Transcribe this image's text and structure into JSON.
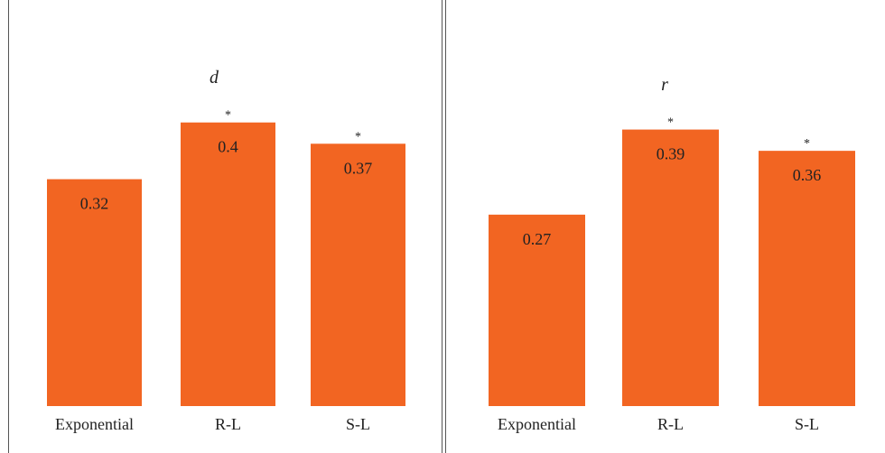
{
  "chart_data": [
    {
      "type": "bar",
      "title": "d",
      "categories": [
        "Exponential",
        "R-L",
        "S-L"
      ],
      "values": [
        0.32,
        0.4,
        0.37
      ],
      "value_labels": [
        "0.32",
        "0.4",
        "0.37"
      ],
      "markers": [
        "",
        "*",
        "*"
      ],
      "bar_color": "#f26522",
      "ylim": [
        0,
        0.42
      ],
      "grid": false,
      "legend": "none"
    },
    {
      "type": "bar",
      "title": "r",
      "categories": [
        "Exponential",
        "R-L",
        "S-L"
      ],
      "values": [
        0.27,
        0.39,
        0.36
      ],
      "value_labels": [
        "0.27",
        "0.39",
        "0.36"
      ],
      "markers": [
        "",
        "*",
        "*"
      ],
      "bar_color": "#f26522",
      "ylim": [
        0,
        0.42
      ],
      "grid": false,
      "legend": "none"
    }
  ]
}
